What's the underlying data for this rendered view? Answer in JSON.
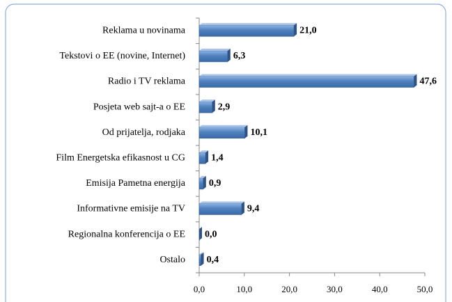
{
  "chart_data": {
    "type": "bar",
    "orientation": "horizontal",
    "categories": [
      "Reklama u novinama",
      "Tekstovi o EE (novine, Internet)",
      "Radio i TV reklama",
      "Posjeta web sajt-a  o EE",
      "Od prijatelja,  rodjaka",
      "Film Energetska  efikasnost u CG",
      "Emisija Pametna  energija",
      "Informativne  emisije na TV",
      "Regionalna  konferencija  o EE",
      "Ostalo"
    ],
    "values": [
      21.0,
      6.3,
      47.6,
      2.9,
      10.1,
      1.4,
      0.9,
      9.4,
      0.0,
      0.4
    ],
    "value_labels": [
      "21,0",
      "6,3",
      "47,6",
      "2,9",
      "10,1",
      "1,4",
      "0,9",
      "9,4",
      "0,0",
      "0,4"
    ],
    "color": "#4f81bd",
    "xlim": [
      0,
      50
    ],
    "xticks": [
      {
        "value": 0,
        "label": "0,0"
      },
      {
        "value": 10,
        "label": "10,0"
      },
      {
        "value": 20,
        "label": "20,0"
      },
      {
        "value": 30,
        "label": "30,0"
      },
      {
        "value": 40,
        "label": "40,0"
      },
      {
        "value": 50,
        "label": "50,0"
      }
    ],
    "grid": false
  }
}
